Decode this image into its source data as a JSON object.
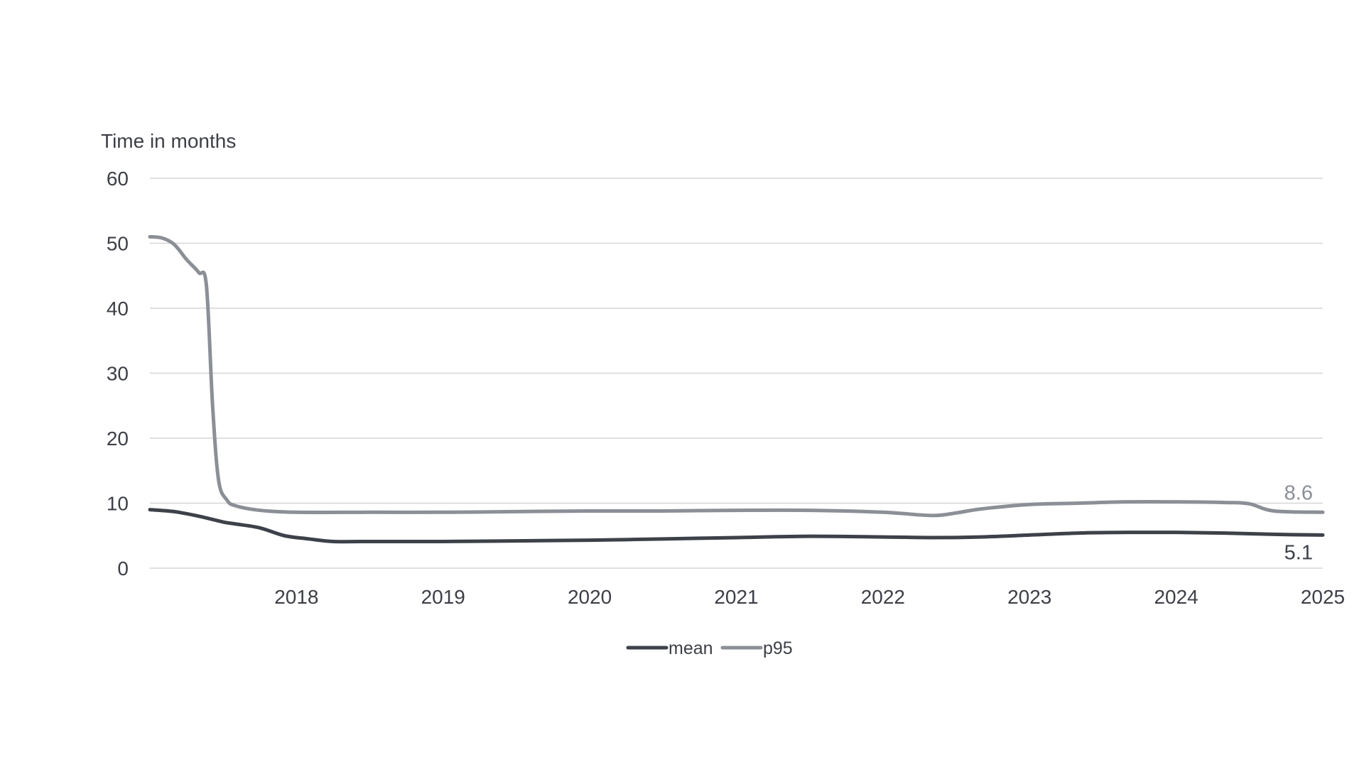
{
  "chart_data": {
    "type": "line",
    "title": "",
    "xlabel": "",
    "ylabel": "Time in months",
    "x_range": [
      "2017-07",
      "2025-07"
    ],
    "ylim": [
      0,
      60
    ],
    "yticks": [
      0,
      10,
      20,
      30,
      40,
      50,
      60
    ],
    "xticks": [
      "2018",
      "2019",
      "2020",
      "2021",
      "2022",
      "2023",
      "2024",
      "2025"
    ],
    "grid": true,
    "legend_placement": "bottom-center",
    "series": [
      {
        "name": "mean",
        "color": "#3d4149",
        "end_label": "5.1",
        "points": [
          [
            "2017-07",
            9.0
          ],
          [
            "2017-09",
            8.7
          ],
          [
            "2017-11",
            8.0
          ],
          [
            "2018-01",
            7.1
          ],
          [
            "2018-02",
            6.8
          ],
          [
            "2018-04",
            6.2
          ],
          [
            "2018-06",
            5.0
          ],
          [
            "2018-08",
            4.5
          ],
          [
            "2018-10",
            4.1
          ],
          [
            "2019-01",
            4.1
          ],
          [
            "2019-07",
            4.1
          ],
          [
            "2020-01",
            4.2
          ],
          [
            "2020-07",
            4.3
          ],
          [
            "2021-01",
            4.5
          ],
          [
            "2021-07",
            4.7
          ],
          [
            "2022-01",
            4.9
          ],
          [
            "2022-07",
            4.8
          ],
          [
            "2022-11",
            4.7
          ],
          [
            "2023-03",
            4.8
          ],
          [
            "2023-07",
            5.1
          ],
          [
            "2023-11",
            5.4
          ],
          [
            "2024-03",
            5.5
          ],
          [
            "2024-07",
            5.5
          ],
          [
            "2024-11",
            5.4
          ],
          [
            "2025-03",
            5.2
          ],
          [
            "2025-07",
            5.1
          ]
        ]
      },
      {
        "name": "p95",
        "color": "#8b8f96",
        "end_label": "8.6",
        "points": [
          [
            "2017-07",
            51.0
          ],
          [
            "2017-08",
            50.8
          ],
          [
            "2017-09",
            49.8
          ],
          [
            "2017-10",
            47.5
          ],
          [
            "2017-11",
            45.5
          ],
          [
            "2017-11-20",
            43.5
          ],
          [
            "2017-12-05",
            25.0
          ],
          [
            "2017-12-20",
            13.5
          ],
          [
            "2018-01-10",
            10.5
          ],
          [
            "2018-02",
            9.6
          ],
          [
            "2018-04",
            8.9
          ],
          [
            "2018-07",
            8.6
          ],
          [
            "2019-01",
            8.6
          ],
          [
            "2019-07",
            8.6
          ],
          [
            "2020-01",
            8.7
          ],
          [
            "2020-07",
            8.8
          ],
          [
            "2021-01",
            8.8
          ],
          [
            "2021-07",
            8.9
          ],
          [
            "2022-01",
            8.9
          ],
          [
            "2022-07",
            8.6
          ],
          [
            "2022-11",
            8.1
          ],
          [
            "2023-01",
            8.5
          ],
          [
            "2023-03",
            9.1
          ],
          [
            "2023-07",
            9.8
          ],
          [
            "2023-11",
            10.0
          ],
          [
            "2024-03",
            10.2
          ],
          [
            "2024-07",
            10.2
          ],
          [
            "2024-11",
            10.1
          ],
          [
            "2025-01",
            9.9
          ],
          [
            "2025-03",
            8.8
          ],
          [
            "2025-07",
            8.6
          ]
        ]
      }
    ]
  }
}
